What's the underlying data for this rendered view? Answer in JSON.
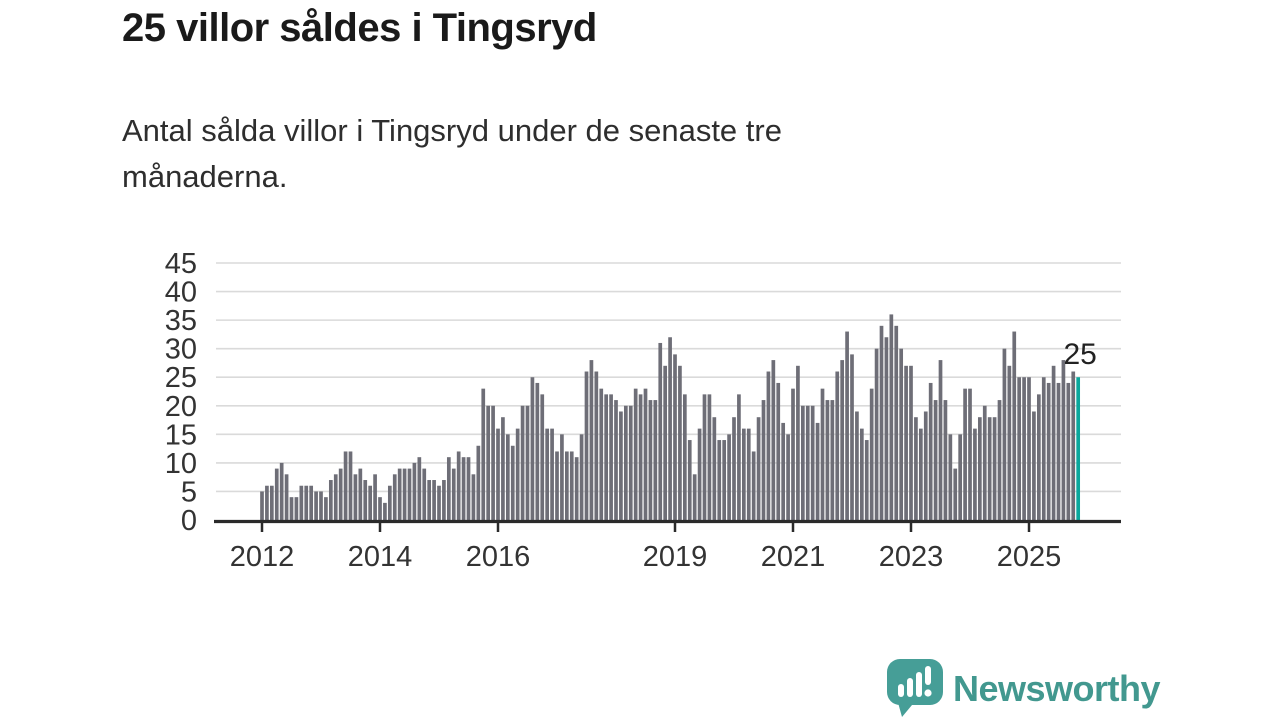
{
  "header": {
    "title": "25 villor såldes i Tingsryd",
    "subtitle": "Antal sålda villor i Tingsryd under de senaste tre månaderna."
  },
  "chart_data": {
    "type": "bar",
    "title": "25 villor såldes i Tingsryd",
    "subtitle": "Antal sålda villor i Tingsryd under de senaste tre månaderna.",
    "x_period": "monthly rolling 3-month sum",
    "x_start": "2012-01",
    "x_end": "2025-11",
    "xlabel": "",
    "ylabel": "",
    "ylim": [
      0,
      45
    ],
    "y_ticks": [
      0,
      5,
      10,
      15,
      20,
      25,
      30,
      35,
      40,
      45
    ],
    "x_tick_years": [
      2012,
      2014,
      2016,
      2019,
      2021,
      2023,
      2025
    ],
    "grid": "horizontal",
    "values": [
      5,
      6,
      6,
      9,
      10,
      8,
      4,
      4,
      6,
      6,
      6,
      5,
      5,
      4,
      7,
      8,
      9,
      12,
      12,
      8,
      9,
      7,
      6,
      8,
      4,
      3,
      6,
      8,
      9,
      9,
      9,
      10,
      11,
      9,
      7,
      7,
      6,
      7,
      11,
      9,
      12,
      11,
      11,
      8,
      13,
      23,
      20,
      20,
      16,
      18,
      15,
      13,
      16,
      20,
      20,
      25,
      24,
      22,
      16,
      16,
      12,
      15,
      12,
      12,
      11,
      15,
      26,
      28,
      26,
      23,
      22,
      22,
      21,
      19,
      20,
      20,
      23,
      22,
      23,
      21,
      21,
      31,
      27,
      32,
      29,
      27,
      22,
      14,
      8,
      16,
      22,
      22,
      18,
      14,
      14,
      15,
      18,
      22,
      16,
      16,
      12,
      18,
      21,
      26,
      28,
      24,
      17,
      15,
      23,
      27,
      20,
      20,
      20,
      17,
      23,
      21,
      21,
      26,
      28,
      33,
      29,
      19,
      16,
      14,
      23,
      30,
      34,
      32,
      36,
      34,
      30,
      27,
      27,
      18,
      16,
      19,
      24,
      21,
      28,
      21,
      15,
      9,
      15,
      23,
      23,
      16,
      18,
      20,
      18,
      18,
      21,
      30,
      27,
      33,
      25,
      25,
      25,
      19,
      22,
      25,
      24,
      27,
      24,
      28,
      24,
      26,
      25
    ],
    "highlight_last": true,
    "last_value": 25,
    "annotation": {
      "text": "25",
      "target": "last-bar"
    },
    "bar_color": "#6e6e77",
    "highlight_color": "#0aa79c",
    "grid_color": "#dadada",
    "axis_color": "#2a2a2a",
    "label_color": "#333333"
  },
  "footer": {
    "logo_text": "Newsworthy",
    "logo_color": "#42988f"
  }
}
